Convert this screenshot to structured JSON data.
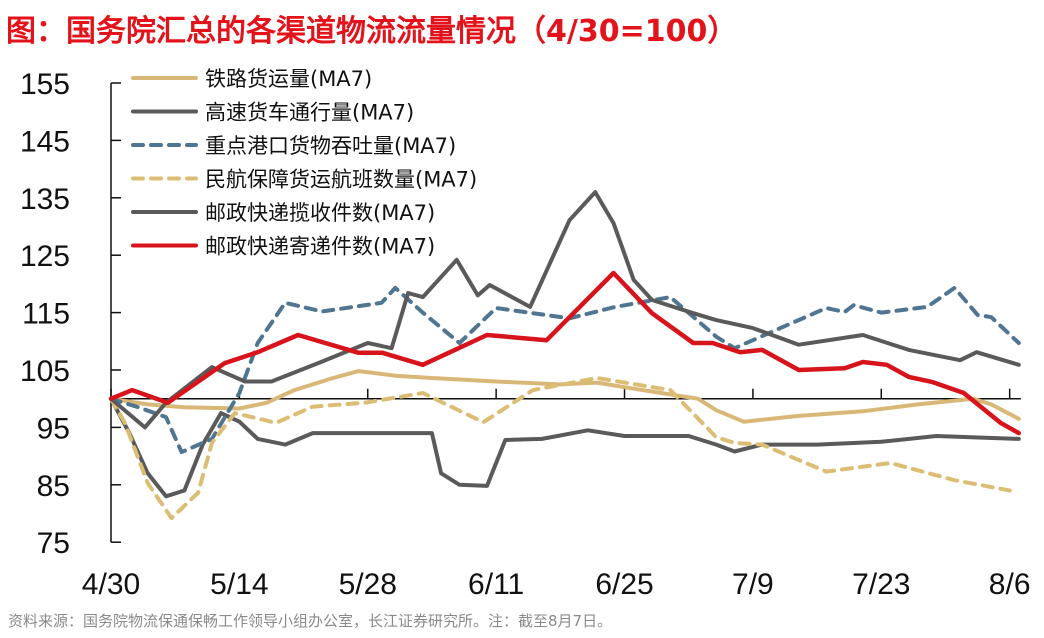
{
  "chart_data": {
    "type": "line",
    "title": "图：国务院汇总的各渠道物流流量情况（4/30=100）",
    "source": "资料来源：国务院物流保通保畅工作领导小组办公室，长江证券研究所。注：截至8月7日。",
    "xlabel": "",
    "ylabel": "",
    "x_unit": "days since 4/30",
    "xlim": [
      0,
      99
    ],
    "ylim": [
      75,
      155
    ],
    "yticks": [
      155,
      145,
      135,
      125,
      115,
      105,
      95,
      85,
      75
    ],
    "xticks": [
      {
        "day": 0,
        "label": "4/30"
      },
      {
        "day": 14,
        "label": "5/14"
      },
      {
        "day": 28,
        "label": "5/28"
      },
      {
        "day": 42,
        "label": "6/11"
      },
      {
        "day": 56,
        "label": "6/25"
      },
      {
        "day": 70,
        "label": "7/9"
      },
      {
        "day": 84,
        "label": "7/23"
      },
      {
        "day": 98,
        "label": "8/6"
      }
    ],
    "baseline": 100,
    "legend_position": "top-left",
    "series": [
      {
        "name": "铁路货运量(MA7)",
        "color": "#d9b877",
        "dash": false,
        "points": [
          [
            0,
            100
          ],
          [
            4,
            99
          ],
          [
            8,
            98.5
          ],
          [
            14,
            98.3
          ],
          [
            17,
            99.3
          ],
          [
            20,
            101.5
          ],
          [
            24,
            103.5
          ],
          [
            27,
            104.8
          ],
          [
            31,
            104
          ],
          [
            35,
            103.6
          ],
          [
            42,
            103
          ],
          [
            49,
            102.5
          ],
          [
            53,
            102.8
          ],
          [
            56,
            102
          ],
          [
            60,
            101
          ],
          [
            64,
            100
          ],
          [
            66,
            98
          ],
          [
            69,
            96
          ],
          [
            75,
            97
          ],
          [
            82,
            97.8
          ],
          [
            88,
            99
          ],
          [
            94,
            100
          ],
          [
            96,
            99
          ],
          [
            99,
            96.5
          ]
        ]
      },
      {
        "name": "高速货车通行量(MA7)",
        "color": "#5a5a5a",
        "dash": false,
        "points": [
          [
            0,
            100
          ],
          [
            2,
            94
          ],
          [
            4,
            87
          ],
          [
            6,
            83
          ],
          [
            8,
            84
          ],
          [
            10,
            92
          ],
          [
            12,
            97.5
          ],
          [
            14,
            96
          ],
          [
            16,
            93
          ],
          [
            19,
            92
          ],
          [
            22,
            94
          ],
          [
            28,
            94
          ],
          [
            35,
            94
          ],
          [
            36,
            87
          ],
          [
            38,
            85
          ],
          [
            41,
            84.8
          ],
          [
            43,
            92.8
          ],
          [
            47,
            93
          ],
          [
            52,
            94.5
          ],
          [
            56,
            93.5
          ],
          [
            63,
            93.5
          ],
          [
            66,
            92
          ],
          [
            68,
            90.8
          ],
          [
            71,
            92
          ],
          [
            77,
            92
          ],
          [
            84,
            92.5
          ],
          [
            90,
            93.5
          ],
          [
            99,
            93
          ]
        ]
      },
      {
        "name": "重点港口货物吞吐量(MA7)",
        "color": "#4f7590",
        "dash": true,
        "points": [
          [
            0,
            100
          ],
          [
            3,
            98.5
          ],
          [
            6,
            96.8
          ],
          [
            7.7,
            90.7
          ],
          [
            11,
            93
          ],
          [
            14,
            101
          ],
          [
            16,
            109.7
          ],
          [
            19,
            116.7
          ],
          [
            23,
            115.2
          ],
          [
            29.5,
            116.7
          ],
          [
            31,
            119.3
          ],
          [
            34,
            115
          ],
          [
            38,
            109.7
          ],
          [
            42,
            115.8
          ],
          [
            50,
            114
          ],
          [
            55,
            116
          ],
          [
            61,
            117.7
          ],
          [
            66,
            110.8
          ],
          [
            68,
            108.8
          ],
          [
            73,
            112.3
          ],
          [
            78,
            115.8
          ],
          [
            80,
            115.1
          ],
          [
            81,
            116.3
          ],
          [
            84,
            115
          ],
          [
            89,
            116
          ],
          [
            92,
            119.3
          ],
          [
            94.5,
            114.6
          ],
          [
            96,
            114.2
          ],
          [
            99,
            109.7
          ]
        ]
      },
      {
        "name": "民航保障货运航班数量(MA7)",
        "color": "#dcbd74",
        "dash": true,
        "points": [
          [
            0,
            100
          ],
          [
            1.5,
            95.8
          ],
          [
            4,
            85.3
          ],
          [
            6.6,
            79.2
          ],
          [
            9.5,
            83.6
          ],
          [
            11,
            92.3
          ],
          [
            13.5,
            97.5
          ],
          [
            18,
            95.8
          ],
          [
            22,
            98.6
          ],
          [
            27.7,
            99.3
          ],
          [
            34,
            101
          ],
          [
            40.6,
            95.9
          ],
          [
            46,
            101.5
          ],
          [
            53,
            103.6
          ],
          [
            61,
            101.5
          ],
          [
            66,
            93.3
          ],
          [
            68,
            92.3
          ],
          [
            71,
            92
          ],
          [
            78,
            87.3
          ],
          [
            85,
            88.8
          ],
          [
            92,
            85.8
          ],
          [
            98,
            84
          ]
        ]
      },
      {
        "name": "邮政快递揽收件数(MA7)",
        "color": "#5a5a5a",
        "dash": false,
        "points": [
          [
            0,
            100
          ],
          [
            3.7,
            95
          ],
          [
            6,
            99.3
          ],
          [
            11,
            105.5
          ],
          [
            14.6,
            103
          ],
          [
            17.5,
            103
          ],
          [
            22.6,
            106.2
          ],
          [
            28,
            109.7
          ],
          [
            30.6,
            108.8
          ],
          [
            32.4,
            118.4
          ],
          [
            34,
            117.7
          ],
          [
            37.7,
            124.2
          ],
          [
            40,
            118
          ],
          [
            41.3,
            119.8
          ],
          [
            45.7,
            116
          ],
          [
            50,
            131.1
          ],
          [
            52.8,
            136
          ],
          [
            54.8,
            130.6
          ],
          [
            57,
            120.7
          ],
          [
            59,
            117.2
          ],
          [
            63.5,
            114.9
          ],
          [
            66,
            113.7
          ],
          [
            70,
            112.3
          ],
          [
            75,
            109.4
          ],
          [
            82,
            111.1
          ],
          [
            87,
            108.5
          ],
          [
            92.6,
            106.7
          ],
          [
            94.4,
            108.1
          ],
          [
            99,
            105.9
          ]
        ]
      },
      {
        "name": "邮政快递寄递件数(MA7)",
        "color": "#d7141c",
        "dash": false,
        "points": [
          [
            0,
            100
          ],
          [
            2.3,
            101.5
          ],
          [
            6.2,
            99.3
          ],
          [
            12.4,
            106.2
          ],
          [
            16,
            108.1
          ],
          [
            20.4,
            111.1
          ],
          [
            27,
            108
          ],
          [
            29.6,
            108
          ],
          [
            34,
            105.9
          ],
          [
            41,
            111.1
          ],
          [
            47.5,
            110.2
          ],
          [
            54.8,
            121.9
          ],
          [
            59,
            114.9
          ],
          [
            63.5,
            109.7
          ],
          [
            65.6,
            109.7
          ],
          [
            68.6,
            108.1
          ],
          [
            71,
            108.5
          ],
          [
            75,
            105
          ],
          [
            80,
            105.3
          ],
          [
            82,
            106.4
          ],
          [
            84.6,
            105.9
          ],
          [
            87,
            103.8
          ],
          [
            89.6,
            102.9
          ],
          [
            93,
            101
          ],
          [
            97,
            95.8
          ],
          [
            99,
            94
          ]
        ]
      }
    ]
  }
}
